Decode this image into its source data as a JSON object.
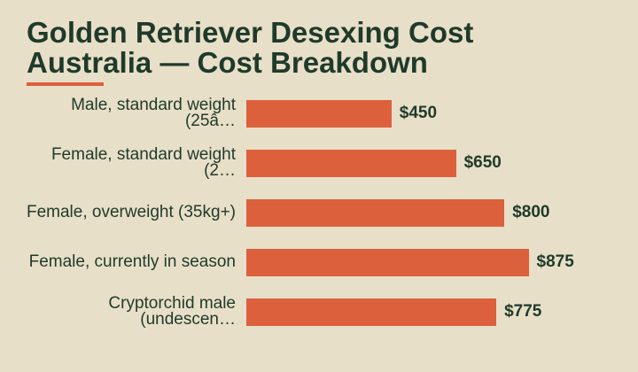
{
  "chart_data": {
    "type": "bar",
    "orientation": "horizontal",
    "title": "Golden Retriever Desexing Cost Australia — Cost Breakdown",
    "categories": [
      "Male, standard weight (25â…",
      "Female, standard weight (2…",
      "Female, overweight (35kg+)",
      "Female, currently in season",
      "Cryptorchid male (undescen…"
    ],
    "values": [
      450,
      650,
      800,
      875,
      775
    ],
    "value_labels": [
      "$450",
      "$650",
      "$800",
      "$875",
      "$775"
    ],
    "color": "#dc603c",
    "xlim": [
      0,
      1000
    ]
  }
}
